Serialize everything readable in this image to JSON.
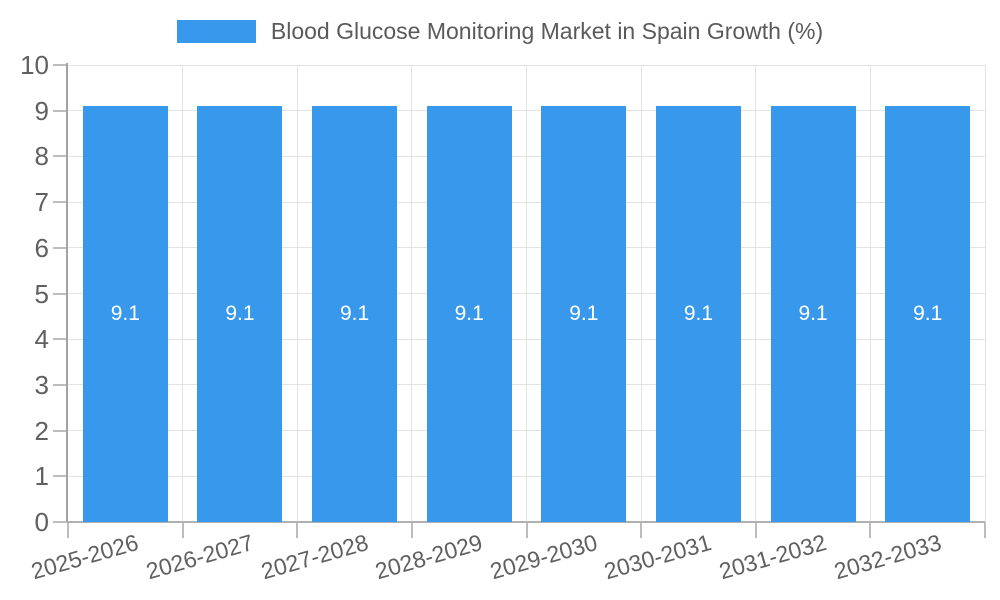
{
  "chart_data": {
    "type": "bar",
    "title": "Blood Glucose Monitoring Market in Spain Growth (%)",
    "categories": [
      "2025-2026",
      "2026-2027",
      "2027-2028",
      "2028-2029",
      "2029-2030",
      "2030-2031",
      "2031-2032",
      "2032-2033"
    ],
    "series": [
      {
        "name": "Blood Glucose Monitoring Market in Spain Growth (%)",
        "values": [
          9.1,
          9.1,
          9.1,
          9.1,
          9.1,
          9.1,
          9.1,
          9.1
        ]
      }
    ],
    "data_labels": [
      "9.1",
      "9.1",
      "9.1",
      "9.1",
      "9.1",
      "9.1",
      "9.1",
      "9.1"
    ],
    "xlabel": "",
    "ylabel": "",
    "ylim": [
      0,
      10
    ],
    "ytick_labels": [
      "0",
      "1",
      "2",
      "3",
      "4",
      "5",
      "6",
      "7",
      "8",
      "9",
      "10"
    ],
    "grid": "on",
    "legend_position": "top-center"
  },
  "colors": {
    "bar": "#3899EC",
    "grid": "#e3e3e3",
    "axis": "#a3a3a3",
    "tick_label": "#606060",
    "title": "#5a5a5a",
    "bar_label": "#ffffff"
  }
}
